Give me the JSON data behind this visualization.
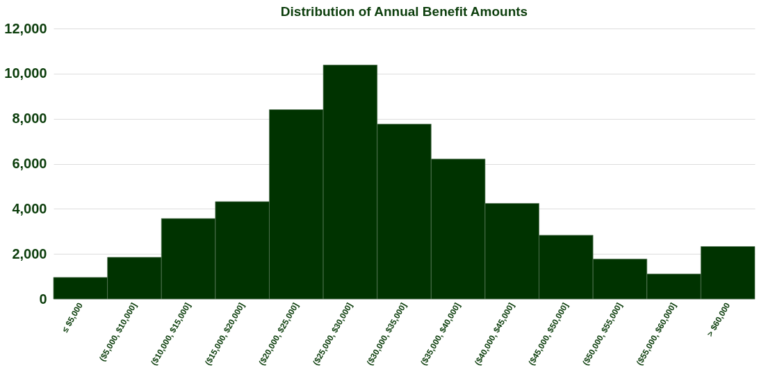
{
  "chart_data": {
    "type": "bar",
    "title": "Distribution of Annual Benefit Amounts",
    "categories": [
      "≤ $5,000",
      "($5,000, $10,000]",
      "($10,000, $15,000]",
      "($15,000, $20,000]",
      "($20,000, $25,000]",
      "($25,000, $30,000]",
      "($30,000, $35,000]",
      "($35,000, $40,000]",
      "($40,000, $45,000]",
      "($45,000, $50,000]",
      "($50,000, $55,000]",
      "($55,000, $60,000]",
      "> $60,000"
    ],
    "values": [
      960,
      1850,
      3570,
      4320,
      8400,
      10380,
      7760,
      6210,
      4240,
      2830,
      1770,
      1110,
      2330
    ],
    "color": "#003300",
    "ylim": [
      0,
      12000
    ],
    "yticks": [
      0,
      {
        "value": 2000,
        "label": "2,000"
      },
      {
        "value": 4000,
        "label": "4,000"
      },
      {
        "value": 6000,
        "label": "6,000"
      },
      {
        "value": 8000,
        "label": "8,000"
      },
      {
        "value": 10000,
        "label": "10,000"
      },
      {
        "value": 12000,
        "label": "12,000"
      }
    ],
    "grid": "y"
  }
}
